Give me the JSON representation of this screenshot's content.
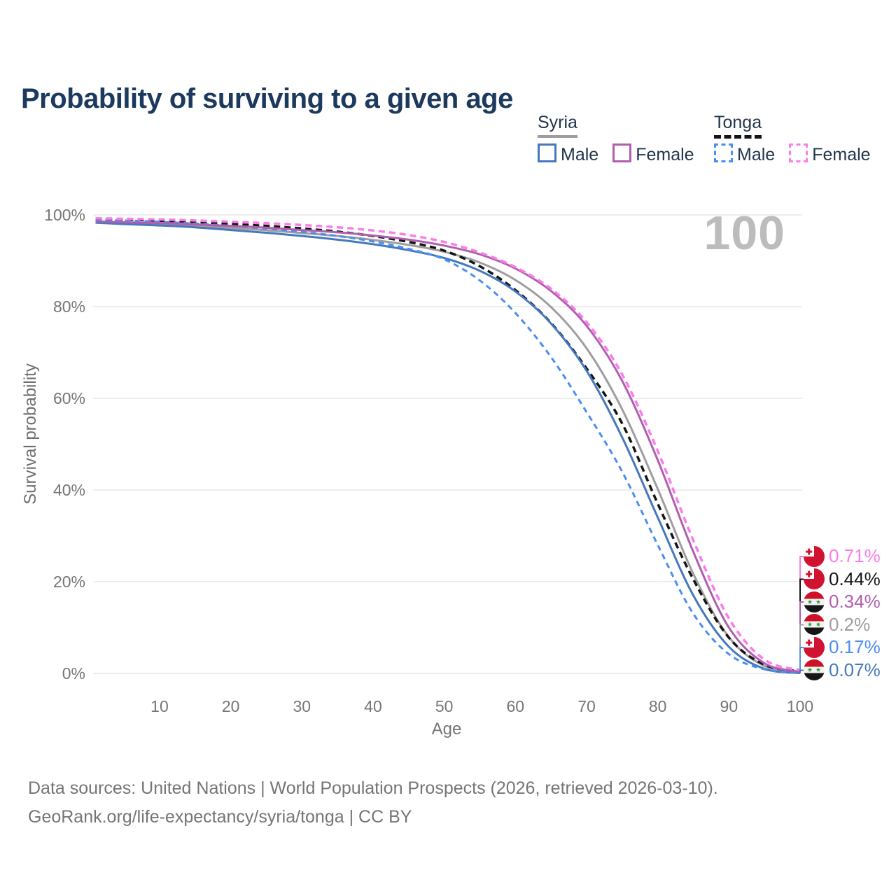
{
  "page_title": "Probability of surviving to a given age",
  "footer": {
    "line1": "Data sources: United Nations | World Population Prospects (2026, retrieved 2026-03-10).",
    "line2": "GeoRank.org/life-expectancy/syria/tonga | CC BY"
  },
  "legend": {
    "groups": [
      {
        "label": "Syria",
        "underline_style": "solid",
        "underline_color": "#9e9e9e",
        "items": [
          {
            "label": "Male",
            "color": "#4678bd",
            "dash": false
          },
          {
            "label": "Female",
            "color": "#b05fae",
            "dash": false
          }
        ]
      },
      {
        "label": "Tonga",
        "underline_style": "dashed",
        "underline_color": "#141414",
        "items": [
          {
            "label": "Male",
            "color": "#4b8ef2",
            "dash": true
          },
          {
            "label": "Female",
            "color": "#fb7ce8",
            "dash": true
          }
        ]
      }
    ]
  },
  "chart_data": {
    "type": "line",
    "title": "Probability of surviving to a given age",
    "xlabel": "Age",
    "ylabel": "Survival probability",
    "watermark": "100",
    "xlim": [
      1,
      100
    ],
    "ylim": [
      0,
      100
    ],
    "grid": true,
    "legend_position": "top-right",
    "x_ticks": [
      10,
      20,
      30,
      40,
      50,
      60,
      70,
      80,
      90,
      100
    ],
    "y_ticks": [
      {
        "value": 100,
        "label": "100%"
      },
      {
        "value": 80,
        "label": "80%"
      },
      {
        "value": 60,
        "label": "60%"
      },
      {
        "value": 40,
        "label": "40%"
      },
      {
        "value": 20,
        "label": "20%"
      },
      {
        "value": 0,
        "label": "0%"
      }
    ],
    "ages": [
      1,
      5,
      10,
      15,
      20,
      25,
      30,
      35,
      40,
      45,
      50,
      55,
      60,
      65,
      70,
      75,
      80,
      85,
      90,
      95,
      100
    ],
    "series": [
      {
        "id": "syria_all",
        "name": "Syria",
        "country": "Syria",
        "sex": "All",
        "color": "#9e9e9e",
        "dash": false,
        "width": 3,
        "values": [
          98.45,
          98.2,
          97.95,
          97.6,
          97.15,
          96.65,
          96.05,
          95.4,
          94.55,
          93.45,
          91.95,
          89.6,
          85.8,
          79.9,
          70.9,
          57.6,
          40.2,
          21.7,
          7.9,
          1.6,
          0.2
        ]
      },
      {
        "id": "tonga_all",
        "name": "Tonga",
        "country": "Tonga",
        "sex": "All",
        "color": "#141414",
        "dash": true,
        "width": 3.5,
        "values": [
          99.15,
          99.0,
          98.75,
          98.45,
          98.05,
          97.6,
          97.05,
          96.35,
          95.4,
          94.1,
          92.2,
          88.8,
          83.6,
          76.4,
          66.5,
          54.5,
          37.0,
          20.5,
          7.8,
          1.9,
          0.44
        ]
      },
      {
        "id": "syria_male",
        "name": "Syria Male",
        "country": "Syria",
        "sex": "Male",
        "color": "#4678bd",
        "dash": false,
        "width": 3,
        "values": [
          98.3,
          98.0,
          97.7,
          97.3,
          96.7,
          96.1,
          95.4,
          94.6,
          93.6,
          92.3,
          90.6,
          87.8,
          83.3,
          76.3,
          66.0,
          51.5,
          34.0,
          17.0,
          5.8,
          1.0,
          0.07
        ]
      },
      {
        "id": "tonga_male",
        "name": "Tonga Male",
        "country": "Tonga",
        "sex": "Male",
        "color": "#4b8ef2",
        "dash": true,
        "width": 3,
        "values": [
          99.0,
          98.8,
          98.5,
          98.1,
          97.6,
          97.0,
          96.3,
          95.4,
          94.2,
          92.6,
          90.3,
          85.7,
          78.6,
          69.0,
          57.0,
          44.0,
          28.0,
          13.0,
          4.2,
          0.9,
          0.17
        ]
      },
      {
        "id": "syria_female",
        "name": "Syria Female",
        "country": "Syria",
        "sex": "Female",
        "color": "#b05fae",
        "dash": false,
        "width": 3,
        "values": [
          98.6,
          98.4,
          98.2,
          97.9,
          97.6,
          97.2,
          96.7,
          96.2,
          95.5,
          94.6,
          93.3,
          91.4,
          88.3,
          83.4,
          75.8,
          63.8,
          46.5,
          26.5,
          10.0,
          2.2,
          0.34
        ]
      },
      {
        "id": "tonga_female",
        "name": "Tonga Female",
        "country": "Tonga",
        "sex": "Female",
        "color": "#fb7ce8",
        "dash": true,
        "width": 3.5,
        "values": [
          99.3,
          99.15,
          99.0,
          98.8,
          98.5,
          98.2,
          97.8,
          97.3,
          96.6,
          95.6,
          94.1,
          91.8,
          88.6,
          83.9,
          76.6,
          65.2,
          48.5,
          29.0,
          12.0,
          3.0,
          0.71
        ]
      }
    ],
    "end_labels": [
      {
        "flag": "tonga",
        "series": "Tonga Female",
        "text": "0.71%",
        "value": 0.71,
        "color": "#fb7ce8"
      },
      {
        "flag": "tonga",
        "series": "Tonga",
        "text": "0.44%",
        "value": 0.44,
        "color": "#141414"
      },
      {
        "flag": "syria",
        "series": "Syria Female",
        "text": "0.34%",
        "value": 0.34,
        "color": "#b05fae"
      },
      {
        "flag": "syria",
        "series": "Syria",
        "text": "0.2%",
        "value": 0.2,
        "color": "#9e9e9e"
      },
      {
        "flag": "tonga",
        "series": "Tonga Male",
        "text": "0.17%",
        "value": 0.17,
        "color": "#4b8ef2"
      },
      {
        "flag": "syria",
        "series": "Syria Male",
        "text": "0.07%",
        "value": 0.07,
        "color": "#4678bd"
      }
    ]
  }
}
